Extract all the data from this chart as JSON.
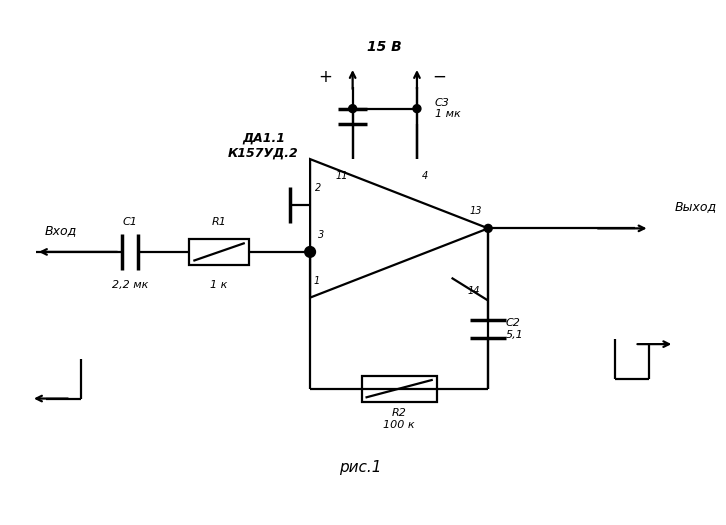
{
  "title": "рис.1",
  "background": "#ffffff",
  "line_color": "#000000",
  "fig_width": 7.26,
  "fig_height": 5.25,
  "dpi": 100,
  "labels": {
    "da": "ДА1.1\nК157УД.2",
    "c1_label": "C1",
    "c1_val": "2,2 мк",
    "r1_label": "R1",
    "r1_val": "1 к",
    "c2_label": "C2\n5,1",
    "c3_label": "C3\n1 мк",
    "r2_label": "R2\n100 к",
    "vhod": "Вход",
    "vyhod": "Выход",
    "voltage": "15 В",
    "pin2": "2",
    "pin3": "3",
    "pin4": "4",
    "pin11": "11",
    "pin13": "13",
    "pin14": "14",
    "pin1": "1",
    "plus": "+",
    "minus": "−"
  }
}
